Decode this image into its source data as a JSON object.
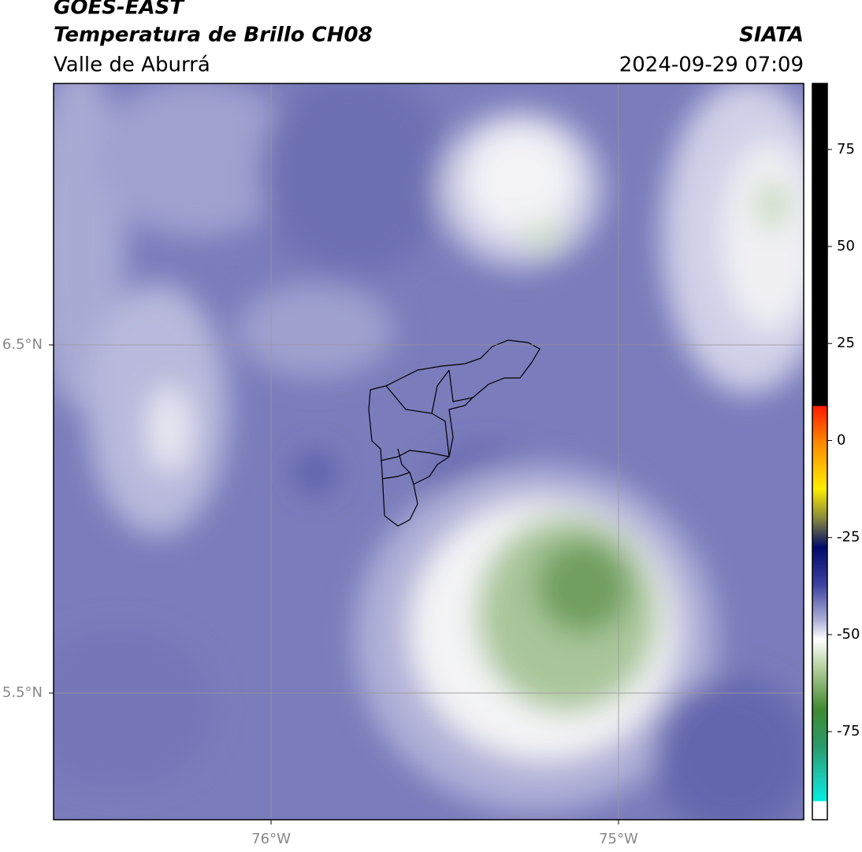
{
  "header": {
    "title": "GOES-EAST",
    "subtitle": "Temperatura de Brillo CH08",
    "region": "Valle de Aburrá",
    "source": "SIATA",
    "timestamp": "2024-09-29 07:09"
  },
  "map": {
    "xlim": [
      -76.626,
      -74.467
    ],
    "ylim": [
      5.136,
      7.251
    ],
    "xticks": [
      {
        "value": -76,
        "label": "76°W"
      },
      {
        "value": -75,
        "label": "75°W"
      }
    ],
    "yticks": [
      {
        "value": 6.5,
        "label": "6.5°N"
      },
      {
        "value": 5.5,
        "label": "5.5°N"
      }
    ],
    "grid": true
  },
  "colorbar": {
    "range": [
      -97.7,
      92
    ],
    "ticks": [
      75,
      50,
      25,
      0,
      -25,
      -50,
      -75
    ]
  }
}
